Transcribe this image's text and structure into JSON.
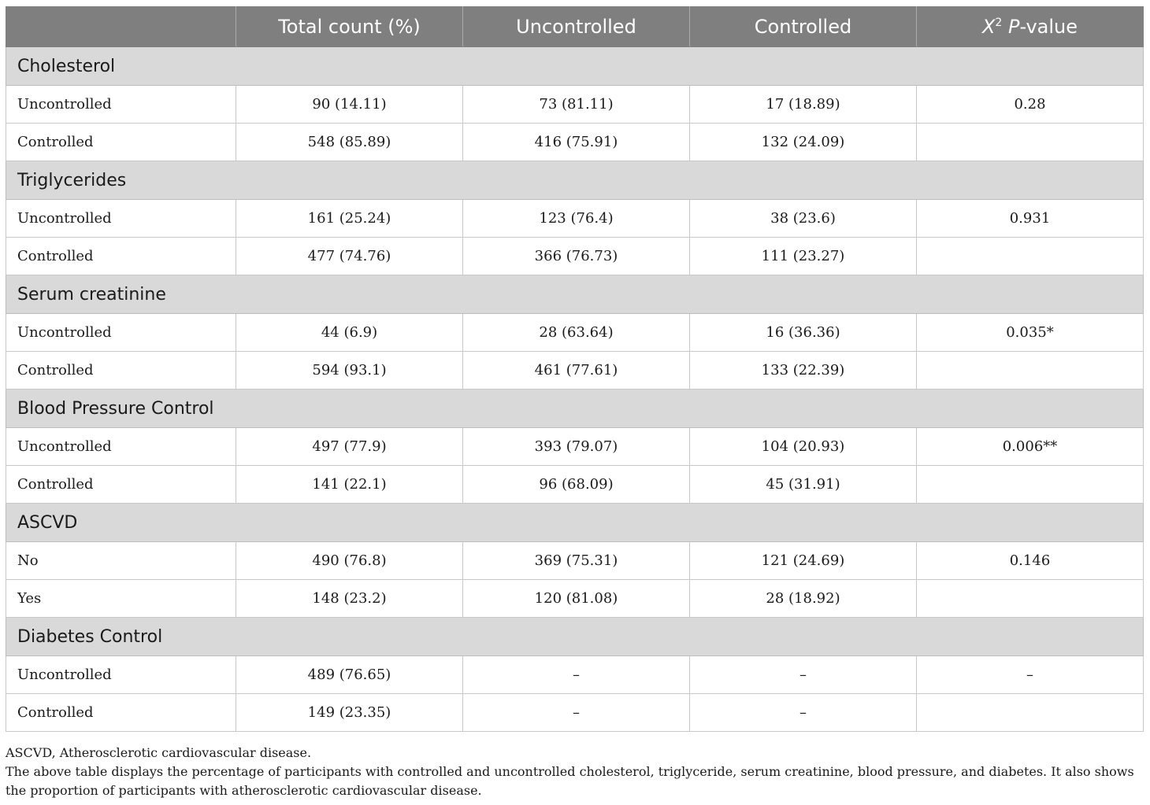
{
  "header": {
    "col_variable": "",
    "col_total": "Total count (%)",
    "col_uncontrolled": "Uncontrolled",
    "col_controlled": "Controlled",
    "col_pvalue_x": "X",
    "col_pvalue_sup": "2",
    "col_pvalue_p": "P",
    "col_pvalue_rest": "-value"
  },
  "sections": [
    {
      "title": "Cholesterol",
      "rows": [
        {
          "label": "Uncontrolled",
          "total": "90 (14.11)",
          "uncontrolled": "73 (81.11)",
          "controlled": "17 (18.89)",
          "pvalue": "0.28"
        },
        {
          "label": "Controlled",
          "total": "548 (85.89)",
          "uncontrolled": "416 (75.91)",
          "controlled": "132 (24.09)",
          "pvalue": ""
        }
      ]
    },
    {
      "title": "Triglycerides",
      "rows": [
        {
          "label": "Uncontrolled",
          "total": "161 (25.24)",
          "uncontrolled": "123 (76.4)",
          "controlled": "38 (23.6)",
          "pvalue": "0.931"
        },
        {
          "label": "Controlled",
          "total": "477 (74.76)",
          "uncontrolled": "366 (76.73)",
          "controlled": "111 (23.27)",
          "pvalue": ""
        }
      ]
    },
    {
      "title": "Serum creatinine",
      "rows": [
        {
          "label": "Uncontrolled",
          "total": "44 (6.9)",
          "uncontrolled": "28 (63.64)",
          "controlled": "16 (36.36)",
          "pvalue": "0.035*"
        },
        {
          "label": "Controlled",
          "total": "594 (93.1)",
          "uncontrolled": "461 (77.61)",
          "controlled": "133 (22.39)",
          "pvalue": ""
        }
      ]
    },
    {
      "title": "Blood Pressure Control",
      "rows": [
        {
          "label": "Uncontrolled",
          "total": "497 (77.9)",
          "uncontrolled": "393 (79.07)",
          "controlled": "104 (20.93)",
          "pvalue": "0.006**"
        },
        {
          "label": "Controlled",
          "total": "141 (22.1)",
          "uncontrolled": "96 (68.09)",
          "controlled": "45 (31.91)",
          "pvalue": ""
        }
      ]
    },
    {
      "title": "ASCVD",
      "rows": [
        {
          "label": "No",
          "total": "490 (76.8)",
          "uncontrolled": "369 (75.31)",
          "controlled": "121 (24.69)",
          "pvalue": "0.146"
        },
        {
          "label": "Yes",
          "total": "148 (23.2)",
          "uncontrolled": "120 (81.08)",
          "controlled": "28 (18.92)",
          "pvalue": ""
        }
      ]
    },
    {
      "title": "Diabetes Control",
      "rows": [
        {
          "label": "Uncontrolled",
          "total": "489 (76.65)",
          "uncontrolled": "–",
          "controlled": "–",
          "pvalue": "–"
        },
        {
          "label": "Controlled",
          "total": "149 (23.35)",
          "uncontrolled": "–",
          "controlled": "–",
          "pvalue": ""
        }
      ]
    }
  ],
  "footnotes": {
    "abbreviation": "ASCVD, Atherosclerotic cardiovascular disease.",
    "description": "The above table displays the percentage of participants with controlled and uncontrolled cholesterol, triglyceride, serum creatinine, blood pressure, and diabetes. It also shows the proportion of participants with atherosclerotic cardiovascular disease."
  }
}
